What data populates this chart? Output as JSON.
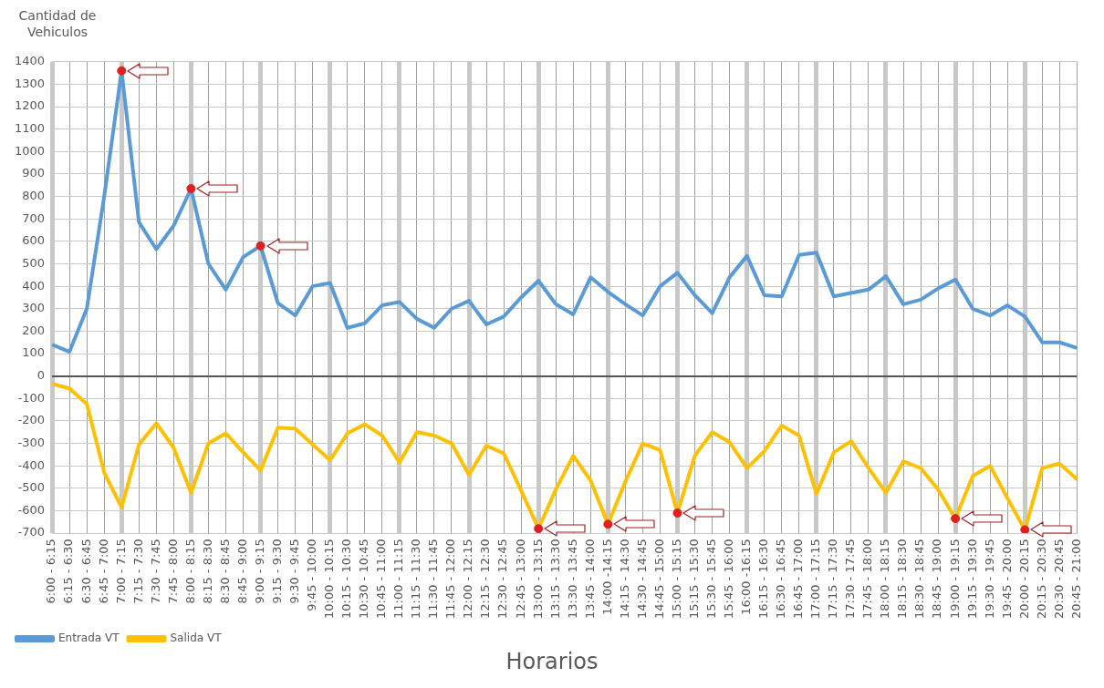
{
  "chart_data": {
    "type": "line",
    "ylabel": "Cantidad de Vehiculos",
    "xlabel": "Horarios",
    "categories": [
      "6:00 - 6:15",
      "6:15 - 6:30",
      "6:30 - 6:45",
      "6:45 - 7:00",
      "7:00 - 7:15",
      "7:15 - 7:30",
      "7:30 - 7:45",
      "7:45 - 8:00",
      "8:00 - 8:15",
      "8:15 - 8:30",
      "8:30 - 8:45",
      "8:45 - 9:00",
      "9:00 - 9:15",
      "9:15 - 9:30",
      "9:30 - 9:45",
      "9:45 - 10:00",
      "10:00 - 10:15",
      "10:15 - 10:30",
      "10:30 - 10:45",
      "10:45 - 11:00",
      "11:00 - 11:15",
      "11:15 - 11:30",
      "11:30 - 11:45",
      "11:45 - 12:00",
      "12:00 - 12:15",
      "12:15 - 12:30",
      "12:30 - 12:45",
      "12:45 - 13:00",
      "13:00 - 13:15",
      "13:15 - 13:30",
      "13:30 - 13:45",
      "13:45 - 14:00",
      "14:00 -14:15",
      "14:15 - 14:30",
      "14:30 - 14:45",
      "14:45 - 15:00",
      "15:00 - 15:15",
      "15:15 - 15:30",
      "15:30 - 15:45",
      "15:45 - 16:00",
      "16:00 -16:15",
      "16:15 - 16:30",
      "16:30 - 16:45",
      "16:45 - 17:00",
      "17:00 - 17:15",
      "17:15 - 17:30",
      "17:30 - 17:45",
      "17:45 - 18:00",
      "18:00 - 18:15",
      "18:15 - 18:30",
      "18:30 - 18:45",
      "18:45 - 19:00",
      "19:00 - 19:15",
      "19:15 - 19:30",
      "19:30 - 19:45",
      "19:45 - 20:00",
      "20:00 - 20:15",
      "20:15 - 20:30",
      "20:30 - 20:45",
      "20:45 - 21:00"
    ],
    "series": [
      {
        "name": "Entrada VT",
        "color": "#5b9bd5",
        "values": [
          140,
          108,
          300,
          800,
          1360,
          685,
          565,
          670,
          835,
          500,
          385,
          530,
          580,
          325,
          270,
          400,
          415,
          215,
          235,
          315,
          330,
          255,
          215,
          300,
          335,
          230,
          265,
          350,
          425,
          320,
          275,
          440,
          375,
          320,
          270,
          400,
          460,
          360,
          280,
          440,
          535,
          360,
          355,
          540,
          550,
          355,
          370,
          385,
          445,
          320,
          340,
          390,
          430,
          300,
          270,
          315,
          265,
          150,
          150,
          125
        ]
      },
      {
        "name": "Salida VT",
        "color": "#ffc000",
        "values": [
          -35,
          -55,
          -125,
          -430,
          -585,
          -305,
          -210,
          -320,
          -520,
          -300,
          -255,
          -340,
          -420,
          -230,
          -235,
          -305,
          -375,
          -255,
          -215,
          -265,
          -385,
          -250,
          -265,
          -300,
          -440,
          -310,
          -345,
          -510,
          -680,
          -505,
          -355,
          -465,
          -660,
          -470,
          -300,
          -330,
          -610,
          -355,
          -250,
          -295,
          -410,
          -335,
          -220,
          -265,
          -525,
          -340,
          -290,
          -410,
          -520,
          -380,
          -410,
          -505,
          -635,
          -445,
          -400,
          -545,
          -685,
          -410,
          -390,
          -460
        ]
      },
      {
        "type": "scatter",
        "marker": "circle",
        "color": "#e02020",
        "x": [
          "7:00 - 7:15",
          "8:00 - 8:15",
          "9:00 - 9:15",
          "13:00 - 13:15",
          "14:00 -14:15",
          "15:00 - 15:15",
          "19:00 - 19:15",
          "20:00 - 20:15"
        ],
        "values": [
          1360,
          835,
          580,
          -680,
          -660,
          -610,
          -635,
          -685
        ]
      }
    ],
    "ylim": [
      -700,
      1400
    ],
    "yticks": [
      -700,
      -600,
      -500,
      -400,
      -300,
      -200,
      -100,
      0,
      100,
      200,
      300,
      400,
      500,
      600,
      700,
      800,
      900,
      1000,
      1100,
      1200,
      1300,
      1400
    ],
    "grid": true,
    "legend": "bottom left",
    "marker": "none",
    "line_style": "solid"
  }
}
